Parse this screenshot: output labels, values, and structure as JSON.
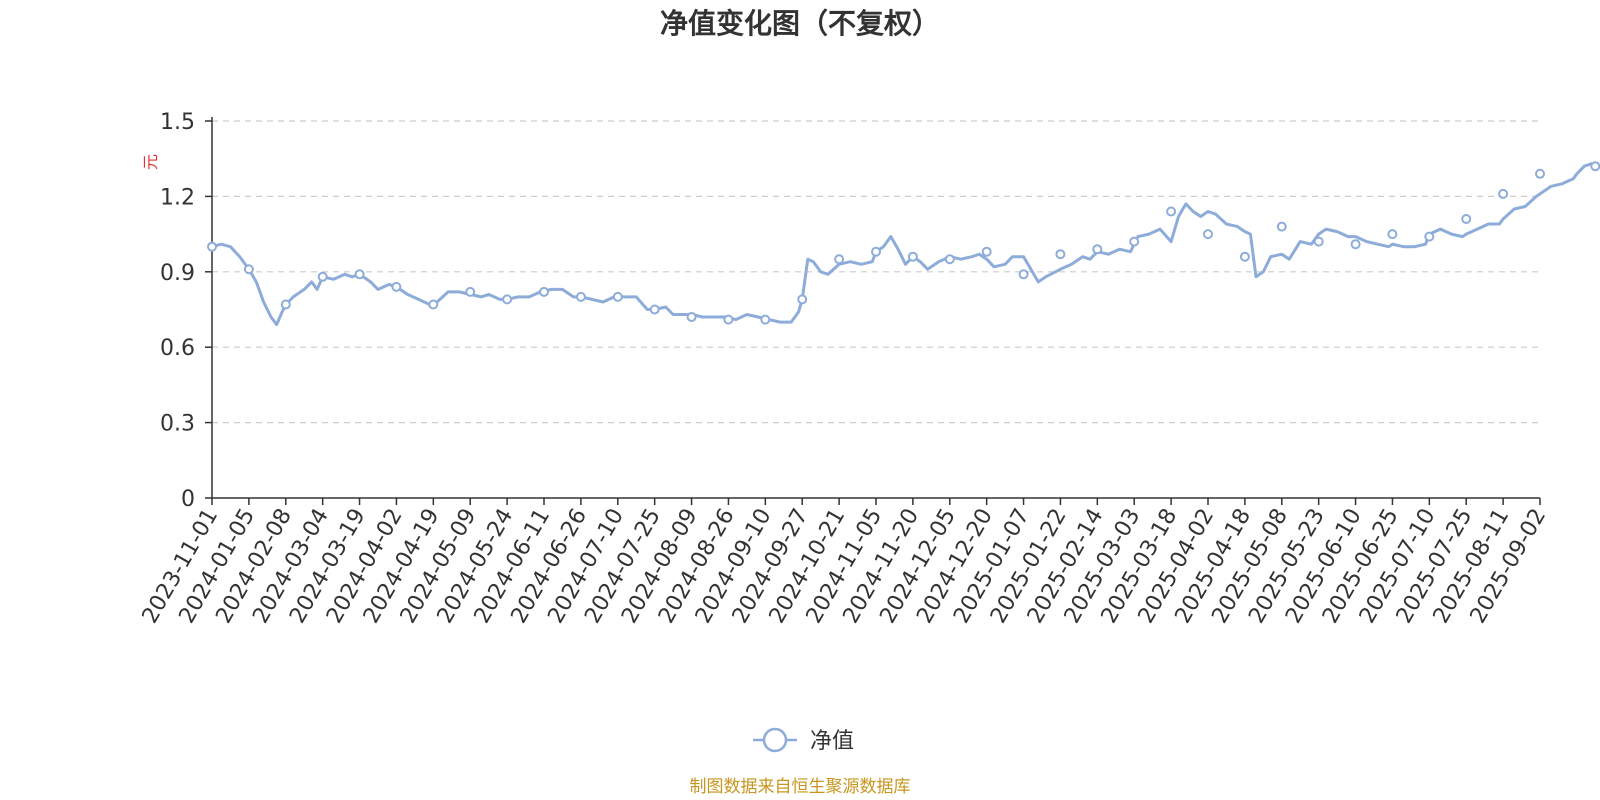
{
  "chart_data": {
    "type": "line",
    "title": "净值变化图（不复权）",
    "ylabel": "元",
    "ylim": [
      0,
      1.5
    ],
    "y_ticks": [
      "0",
      "0.3",
      "0.6",
      "0.9",
      "1.2",
      "1.5"
    ],
    "y_tick_values": [
      0,
      0.3,
      0.6,
      0.9,
      1.2,
      1.5
    ],
    "grid": true,
    "legend_position": "bottom-center",
    "x_tick_labels": [
      "2023-11-01",
      "2024-01-05",
      "2024-02-08",
      "2024-03-04",
      "2024-03-19",
      "2024-04-02",
      "2024-04-19",
      "2024-05-09",
      "2024-05-24",
      "2024-06-11",
      "2024-06-26",
      "2024-07-10",
      "2024-07-25",
      "2024-08-09",
      "2024-08-26",
      "2024-09-10",
      "2024-09-27",
      "2024-10-21",
      "2024-11-05",
      "2024-11-20",
      "2024-12-05",
      "2024-12-20",
      "2025-01-07",
      "2025-01-22",
      "2025-02-14",
      "2025-03-03",
      "2025-03-18",
      "2025-04-02",
      "2025-04-18",
      "2025-05-08",
      "2025-05-23",
      "2025-06-10",
      "2025-06-25",
      "2025-07-10",
      "2025-07-25",
      "2025-08-11",
      "2025-09-02"
    ],
    "series": [
      {
        "name": "净值",
        "color": "#8eacd9",
        "points": [
          [
            0,
            1.0
          ],
          [
            0.25,
            1.01
          ],
          [
            0.5,
            1.0
          ],
          [
            0.75,
            0.96
          ],
          [
            1.0,
            0.91
          ],
          [
            1.2,
            0.86
          ],
          [
            1.4,
            0.78
          ],
          [
            1.6,
            0.72
          ],
          [
            1.75,
            0.69
          ],
          [
            1.9,
            0.74
          ],
          [
            2.0,
            0.77
          ],
          [
            2.2,
            0.8
          ],
          [
            2.5,
            0.83
          ],
          [
            2.7,
            0.86
          ],
          [
            2.85,
            0.83
          ],
          [
            3.0,
            0.88
          ],
          [
            3.3,
            0.87
          ],
          [
            3.6,
            0.89
          ],
          [
            3.8,
            0.88
          ],
          [
            4.0,
            0.89
          ],
          [
            4.3,
            0.86
          ],
          [
            4.5,
            0.83
          ],
          [
            4.8,
            0.85
          ],
          [
            5.0,
            0.84
          ],
          [
            5.3,
            0.81
          ],
          [
            5.6,
            0.79
          ],
          [
            5.9,
            0.77
          ],
          [
            6.1,
            0.78
          ],
          [
            6.4,
            0.82
          ],
          [
            6.7,
            0.82
          ],
          [
            7.0,
            0.81
          ],
          [
            7.3,
            0.8
          ],
          [
            7.5,
            0.81
          ],
          [
            7.8,
            0.79
          ],
          [
            8.0,
            0.79
          ],
          [
            8.3,
            0.8
          ],
          [
            8.6,
            0.8
          ],
          [
            8.9,
            0.82
          ],
          [
            9.2,
            0.83
          ],
          [
            9.5,
            0.83
          ],
          [
            9.8,
            0.8
          ],
          [
            10.0,
            0.8
          ],
          [
            10.3,
            0.79
          ],
          [
            10.6,
            0.78
          ],
          [
            10.9,
            0.8
          ],
          [
            11.2,
            0.8
          ],
          [
            11.5,
            0.8
          ],
          [
            11.8,
            0.75
          ],
          [
            12.0,
            0.75
          ],
          [
            12.3,
            0.76
          ],
          [
            12.5,
            0.73
          ],
          [
            12.8,
            0.73
          ],
          [
            13.0,
            0.73
          ],
          [
            13.3,
            0.72
          ],
          [
            13.6,
            0.72
          ],
          [
            13.9,
            0.72
          ],
          [
            14.2,
            0.71
          ],
          [
            14.5,
            0.73
          ],
          [
            14.8,
            0.72
          ],
          [
            15.1,
            0.71
          ],
          [
            15.4,
            0.7
          ],
          [
            15.7,
            0.7
          ],
          [
            15.9,
            0.74
          ],
          [
            16.0,
            0.79
          ],
          [
            16.15,
            0.95
          ],
          [
            16.3,
            0.94
          ],
          [
            16.5,
            0.9
          ],
          [
            16.7,
            0.89
          ],
          [
            17.0,
            0.93
          ],
          [
            17.3,
            0.94
          ],
          [
            17.6,
            0.93
          ],
          [
            17.9,
            0.94
          ],
          [
            18.0,
            0.98
          ],
          [
            18.2,
            1.0
          ],
          [
            18.4,
            1.04
          ],
          [
            18.6,
            0.99
          ],
          [
            18.8,
            0.93
          ],
          [
            19.0,
            0.96
          ],
          [
            19.2,
            0.94
          ],
          [
            19.4,
            0.91
          ],
          [
            19.7,
            0.94
          ],
          [
            20.0,
            0.96
          ],
          [
            20.3,
            0.95
          ],
          [
            20.6,
            0.96
          ],
          [
            20.8,
            0.97
          ],
          [
            21.0,
            0.95
          ],
          [
            21.2,
            0.92
          ],
          [
            21.5,
            0.93
          ],
          [
            21.7,
            0.96
          ],
          [
            22.0,
            0.96
          ],
          [
            22.2,
            0.91
          ],
          [
            22.4,
            0.86
          ],
          [
            22.6,
            0.88
          ],
          [
            23.0,
            0.91
          ],
          [
            23.3,
            0.93
          ],
          [
            23.6,
            0.96
          ],
          [
            23.8,
            0.95
          ],
          [
            24.0,
            0.98
          ],
          [
            24.3,
            0.97
          ],
          [
            24.6,
            0.99
          ],
          [
            24.9,
            0.98
          ],
          [
            25.1,
            1.04
          ],
          [
            25.4,
            1.05
          ],
          [
            25.7,
            1.07
          ],
          [
            26.0,
            1.02
          ],
          [
            26.2,
            1.12
          ],
          [
            26.4,
            1.17
          ],
          [
            26.6,
            1.14
          ],
          [
            26.8,
            1.12
          ],
          [
            27.0,
            1.14
          ],
          [
            27.2,
            1.13
          ],
          [
            27.5,
            1.09
          ],
          [
            27.8,
            1.08
          ],
          [
            28.0,
            1.06
          ],
          [
            28.15,
            1.05
          ],
          [
            28.3,
            0.88
          ],
          [
            28.5,
            0.9
          ],
          [
            28.7,
            0.96
          ],
          [
            29.0,
            0.97
          ],
          [
            29.2,
            0.95
          ],
          [
            29.5,
            1.02
          ],
          [
            29.8,
            1.01
          ],
          [
            30.0,
            1.05
          ],
          [
            30.2,
            1.07
          ],
          [
            30.5,
            1.06
          ],
          [
            30.8,
            1.04
          ],
          [
            31.0,
            1.04
          ],
          [
            31.3,
            1.02
          ],
          [
            31.6,
            1.01
          ],
          [
            31.9,
            1.0
          ],
          [
            32.0,
            1.01
          ],
          [
            32.3,
            1.0
          ],
          [
            32.6,
            1.0
          ],
          [
            32.9,
            1.01
          ],
          [
            33.0,
            1.05
          ],
          [
            33.3,
            1.07
          ],
          [
            33.6,
            1.05
          ],
          [
            33.9,
            1.04
          ],
          [
            34.0,
            1.05
          ],
          [
            34.3,
            1.07
          ],
          [
            34.6,
            1.09
          ],
          [
            34.9,
            1.09
          ],
          [
            35.0,
            1.11
          ],
          [
            35.3,
            1.15
          ],
          [
            35.6,
            1.16
          ],
          [
            35.9,
            1.2
          ],
          [
            36.0,
            1.21
          ],
          [
            36.3,
            1.24
          ],
          [
            36.6,
            1.25
          ],
          [
            36.9,
            1.27
          ],
          [
            37.0,
            1.29
          ],
          [
            37.2,
            1.32
          ],
          [
            37.4,
            1.33
          ],
          [
            37.5,
            1.32
          ]
        ],
        "marker_points": [
          [
            0,
            1.0
          ],
          [
            1.0,
            0.91
          ],
          [
            2.0,
            0.77
          ],
          [
            3.0,
            0.88
          ],
          [
            4.0,
            0.89
          ],
          [
            5.0,
            0.84
          ],
          [
            6.0,
            0.77
          ],
          [
            7.0,
            0.82
          ],
          [
            8.0,
            0.79
          ],
          [
            9.0,
            0.82
          ],
          [
            10.0,
            0.8
          ],
          [
            11.0,
            0.8
          ],
          [
            12.0,
            0.75
          ],
          [
            13.0,
            0.72
          ],
          [
            14.0,
            0.71
          ],
          [
            15.0,
            0.71
          ],
          [
            16.0,
            0.79
          ],
          [
            17.0,
            0.95
          ],
          [
            18.0,
            0.98
          ],
          [
            19.0,
            0.96
          ],
          [
            20.0,
            0.95
          ],
          [
            21.0,
            0.98
          ],
          [
            22.0,
            0.89
          ],
          [
            23.0,
            0.97
          ],
          [
            24.0,
            0.99
          ],
          [
            25.0,
            1.02
          ],
          [
            26.0,
            1.14
          ],
          [
            27.0,
            1.05
          ],
          [
            28.0,
            0.96
          ],
          [
            29.0,
            1.08
          ],
          [
            30.0,
            1.02
          ],
          [
            31.0,
            1.01
          ],
          [
            32.0,
            1.05
          ],
          [
            33.0,
            1.04
          ],
          [
            34.0,
            1.11
          ],
          [
            35.0,
            1.21
          ],
          [
            36.0,
            1.29
          ],
          [
            37.5,
            1.32
          ]
        ]
      }
    ],
    "colors": {
      "line": "#8eacd9",
      "axis": "#333333",
      "grid": "#cccccc",
      "title": "#333333",
      "unit": "#e03030",
      "source": "#c8961e"
    }
  },
  "legend": {
    "label": "净值"
  },
  "source": "制图数据来自恒生聚源数据库"
}
